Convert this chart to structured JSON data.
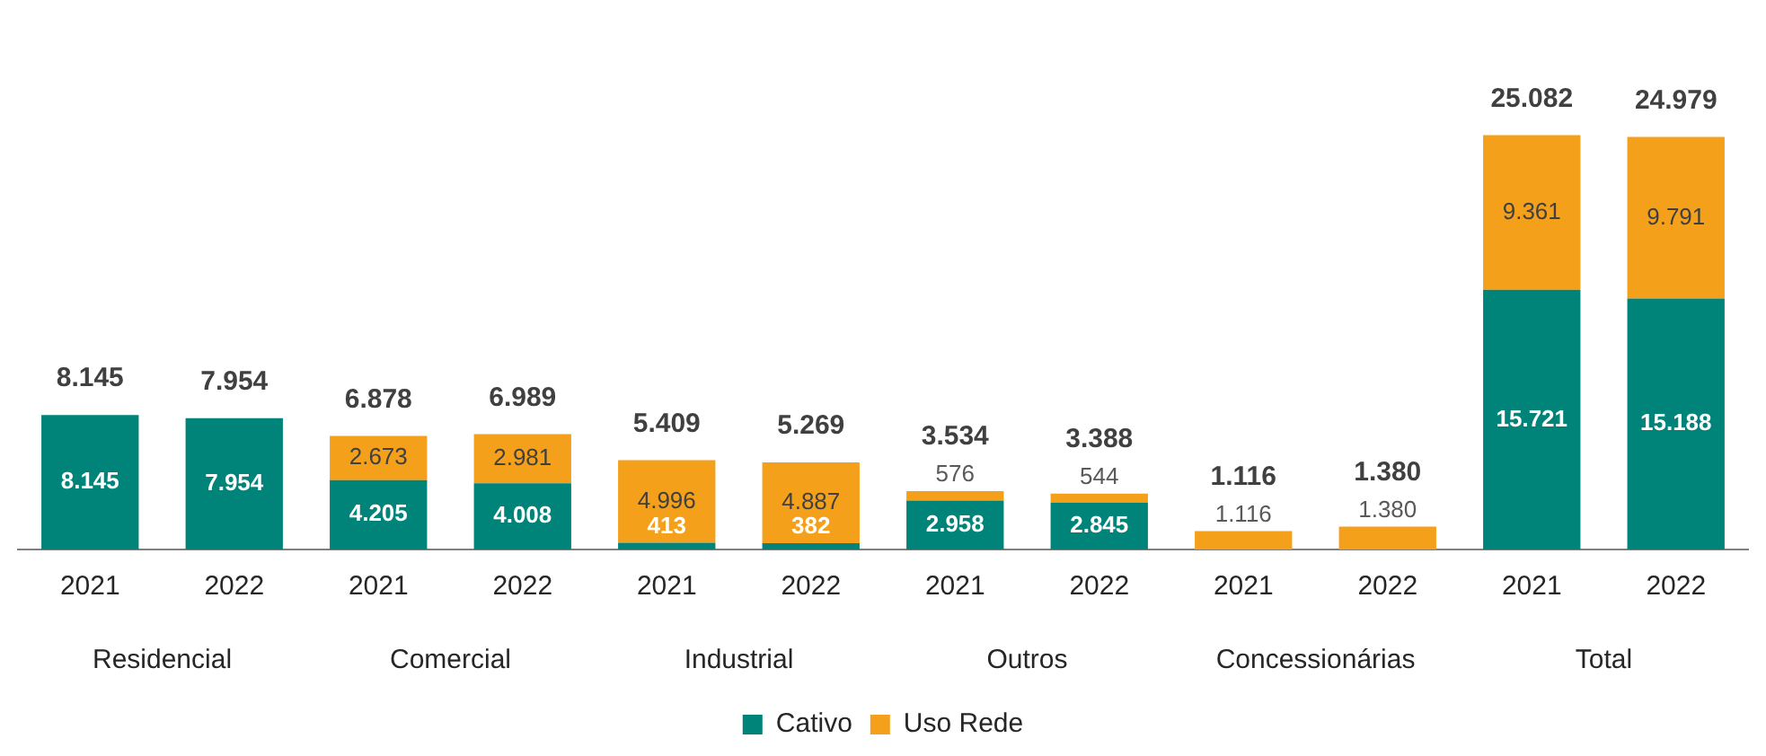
{
  "chart_data": {
    "type": "bar",
    "stacked": true,
    "categories": [
      "2021",
      "2022",
      "2021",
      "2022",
      "2021",
      "2022",
      "2021",
      "2022",
      "2021",
      "2022",
      "2021",
      "2022"
    ],
    "series": [
      {
        "name": "Cativo",
        "color": "#00847a",
        "values": [
          8145,
          7954,
          4205,
          4008,
          413,
          382,
          2958,
          2845,
          null,
          null,
          15721,
          15188
        ],
        "value_labels": [
          "8.145",
          "7.954",
          "4.205",
          "4.008",
          "413",
          "382",
          "2.958",
          "2.845",
          null,
          null,
          "15.721",
          "15.188"
        ]
      },
      {
        "name": "Uso Rede",
        "color": "#f5a01a",
        "values": [
          null,
          null,
          2673,
          2981,
          4996,
          4887,
          576,
          544,
          1116,
          1380,
          9361,
          9791
        ],
        "value_labels": [
          null,
          null,
          "2.673",
          "2.981",
          "4.996",
          "4.887",
          "576",
          "544",
          "1.116",
          "1.380",
          "9.361",
          "9.791"
        ]
      }
    ],
    "totals": [
      "8.145",
      "7.954",
      "6.878",
      "6.989",
      "5.409",
      "5.269",
      "3.534",
      "3.388",
      "1.116",
      "1.380",
      "25.082",
      "24.979"
    ],
    "annotations": [
      "Residencial",
      "Comercial",
      "Industrial",
      "Outros",
      "Concessionárias",
      "Total"
    ],
    "legend": "bottom",
    "grid": false
  }
}
